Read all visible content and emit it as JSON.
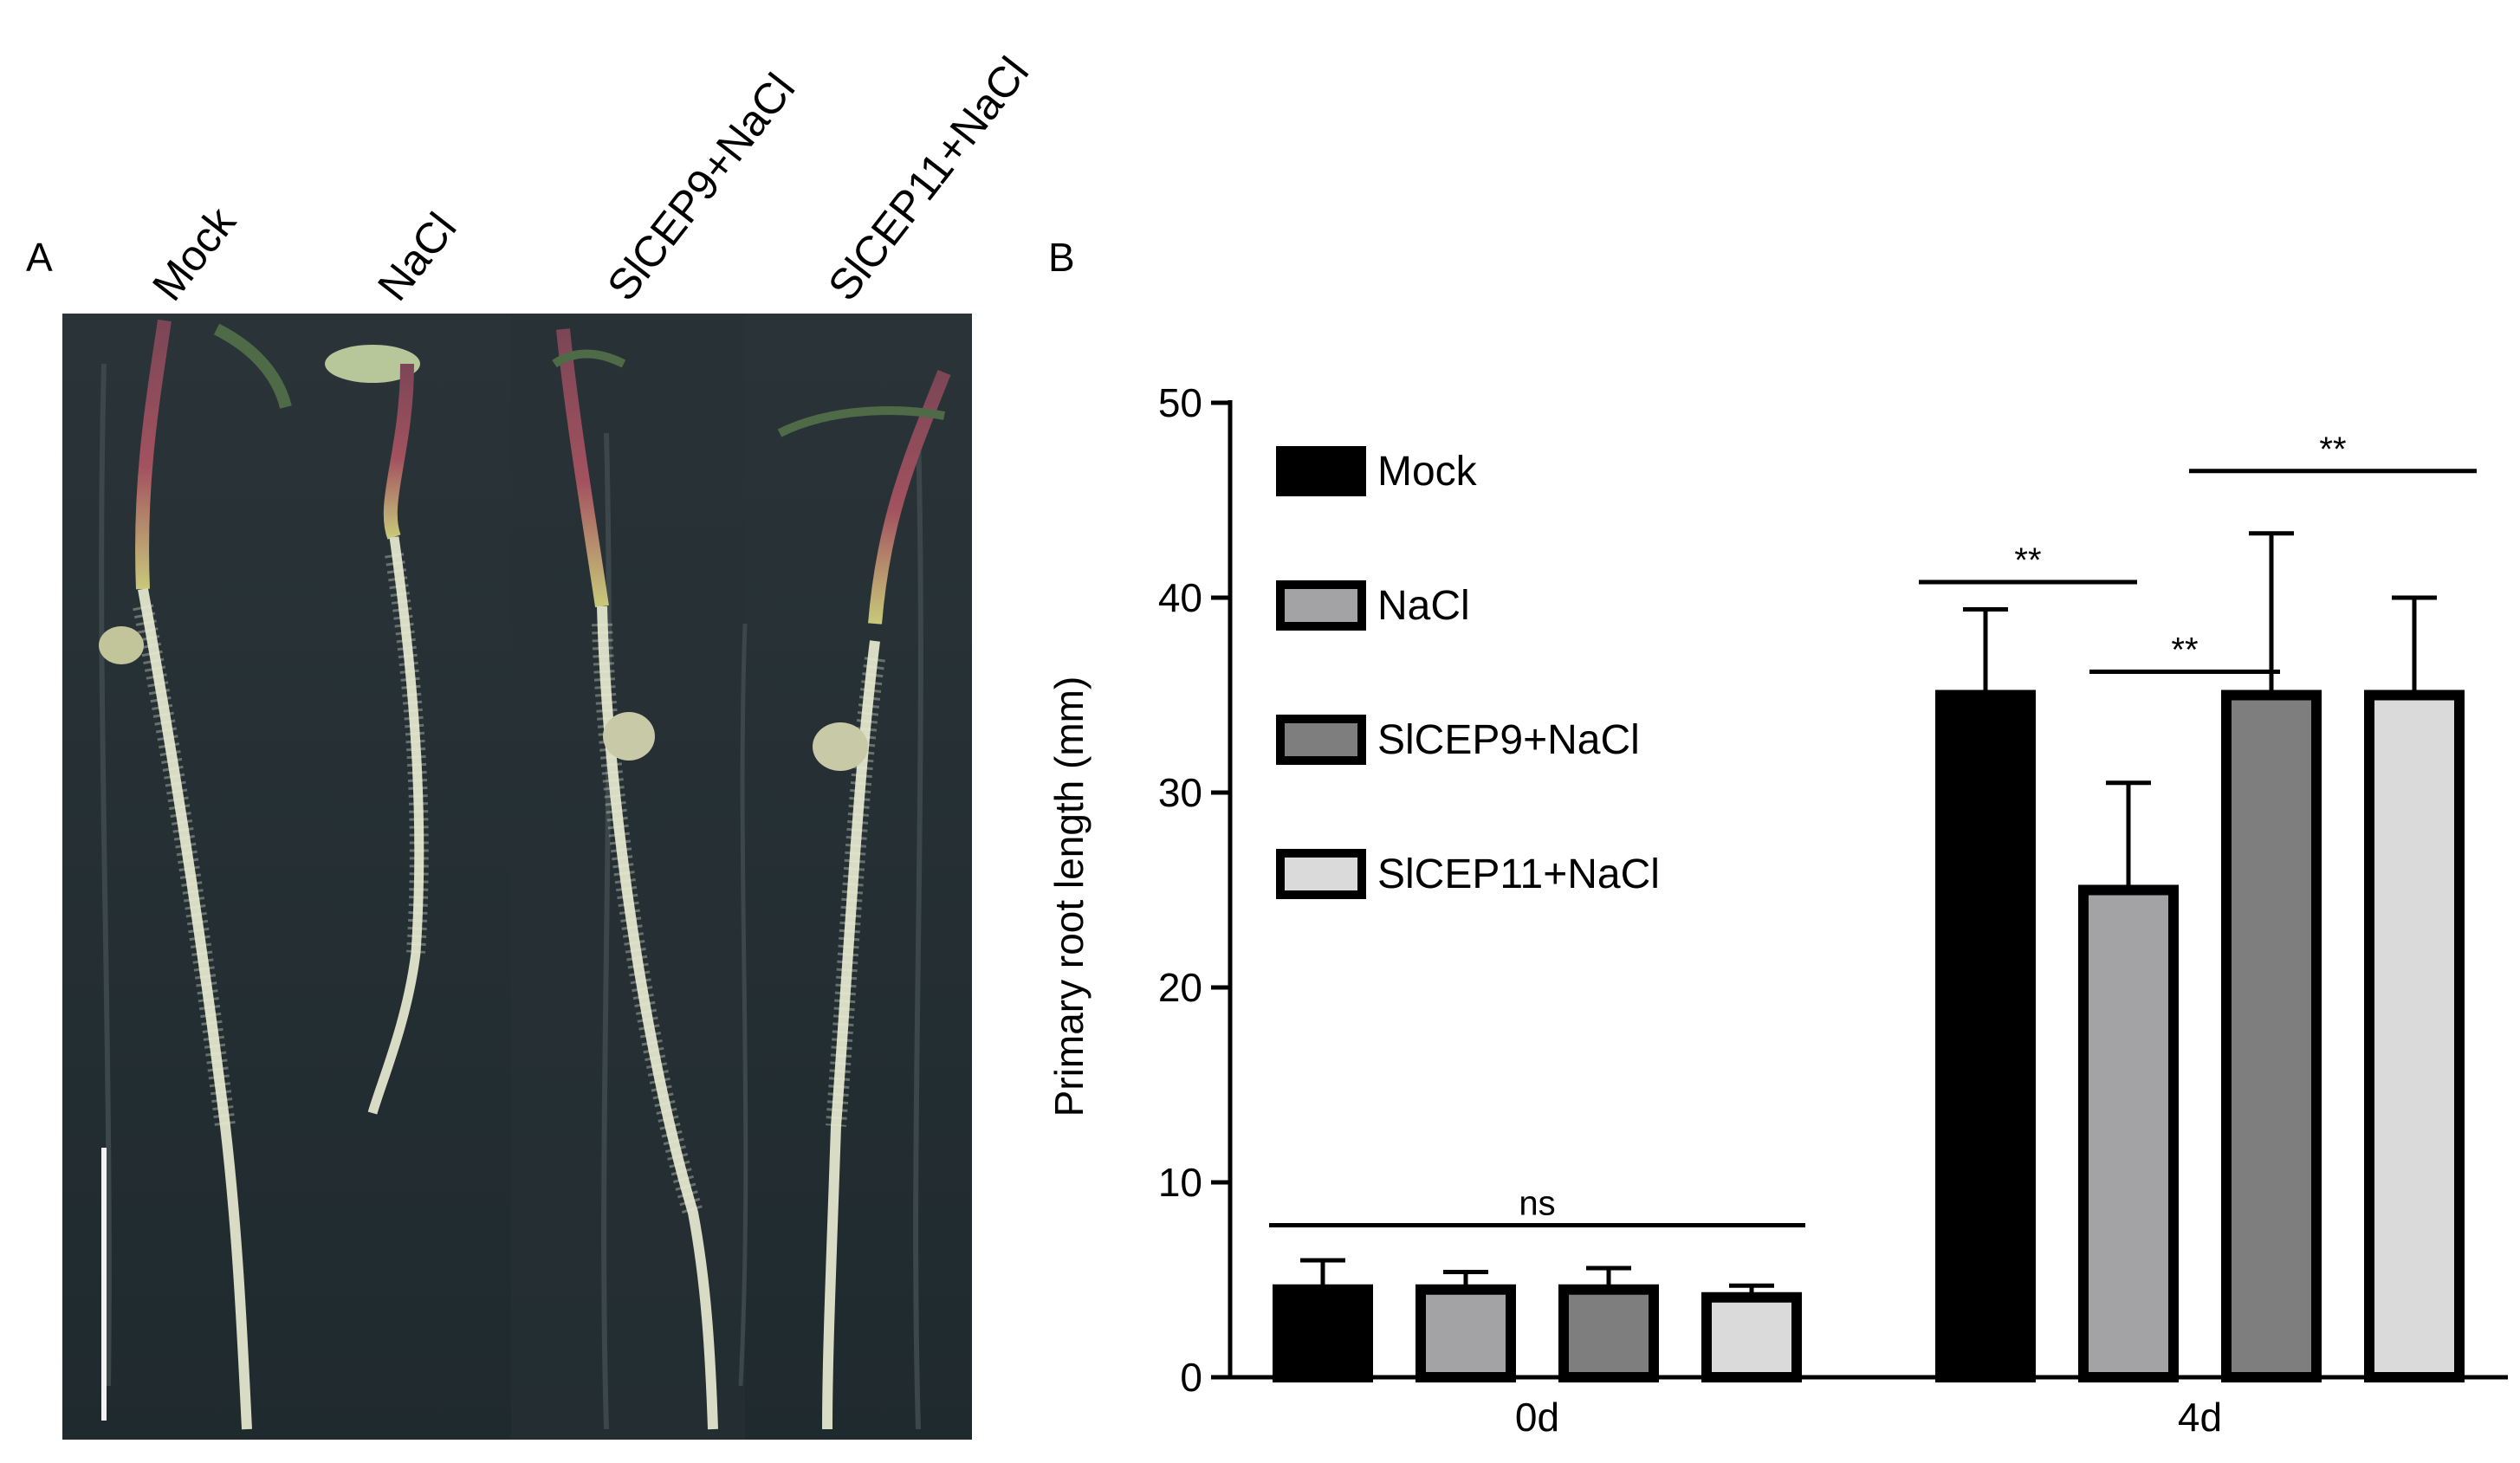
{
  "panel_a": {
    "letter": "A",
    "labels": [
      "Mock",
      "NaCl",
      "SlCEP9+NaCl",
      "SlCEP11+NaCl"
    ]
  },
  "panel_b": {
    "letter": "B"
  },
  "chart_data": {
    "type": "bar",
    "title": "",
    "ylabel": "Primary root length (mm)",
    "xlabel": "",
    "ylim": [
      0,
      50
    ],
    "yticks": [
      0,
      10,
      20,
      30,
      40,
      50
    ],
    "categories": [
      "0d",
      "4d"
    ],
    "series": [
      {
        "name": "Mock",
        "color": "#000000",
        "values": [
          4.5,
          35.0
        ],
        "errors": [
          1.5,
          4.4
        ]
      },
      {
        "name": "NaCl",
        "color": "#a3a3a6",
        "values": [
          4.5,
          25.0
        ],
        "errors": [
          0.9,
          5.5
        ]
      },
      {
        "name": "SlCEP9+NaCl",
        "color": "#7e7e7e",
        "values": [
          4.5,
          35.0
        ],
        "errors": [
          1.1,
          8.3
        ]
      },
      {
        "name": "SlCEP11+NaCl",
        "color": "#dadada",
        "values": [
          4.1,
          35.0
        ],
        "errors": [
          0.6,
          5.0
        ]
      }
    ],
    "legend_position": "top-left",
    "annotations": [
      {
        "text": "ns",
        "y": 7.8
      },
      {
        "text": "**",
        "y": 40.8
      },
      {
        "text": "**",
        "y": 36.2
      },
      {
        "text": "**",
        "y": 46.5
      }
    ],
    "grid": false
  }
}
